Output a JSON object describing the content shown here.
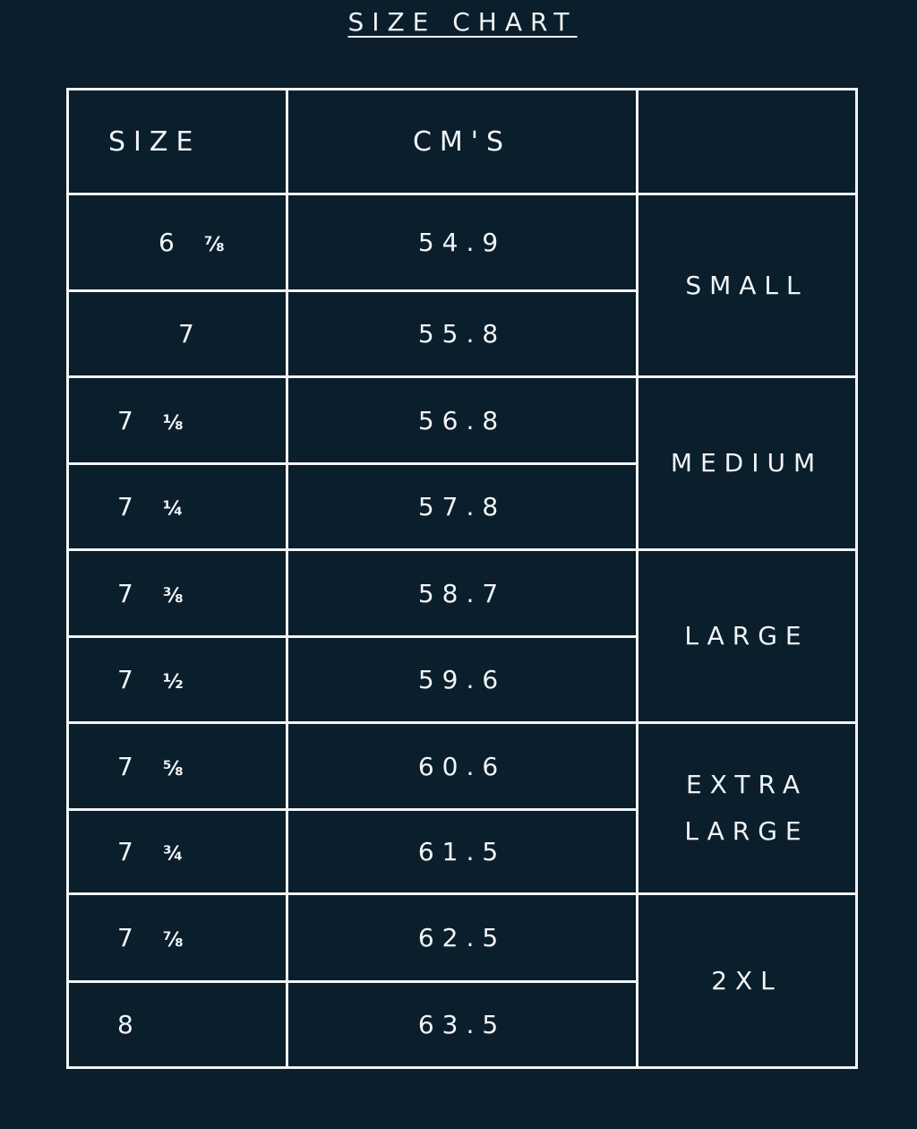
{
  "title": "SIZE CHART",
  "headers": {
    "size": "SIZE",
    "cms": "CM'S",
    "category": ""
  },
  "rows": [
    {
      "whole": "6",
      "fraction": "⅞",
      "cm": "54.9"
    },
    {
      "whole": "7",
      "fraction": "",
      "cm": "55.8"
    },
    {
      "whole": "7",
      "fraction": "⅛",
      "cm": "56.8"
    },
    {
      "whole": "7",
      "fraction": "¼",
      "cm": "57.8"
    },
    {
      "whole": "7",
      "fraction": "⅜",
      "cm": "58.7"
    },
    {
      "whole": "7",
      "fraction": "½",
      "cm": "59.6"
    },
    {
      "whole": "7",
      "fraction": "⅝",
      "cm": "60.6"
    },
    {
      "whole": "7",
      "fraction": "¾",
      "cm": "61.5"
    },
    {
      "whole": "7",
      "fraction": "⅞",
      "cm": "62.5"
    },
    {
      "whole": "8",
      "fraction": "",
      "cm": "63.5"
    }
  ],
  "categories": [
    {
      "line1": "SMALL",
      "line2": ""
    },
    {
      "line1": "MEDIUM",
      "line2": ""
    },
    {
      "line1": "LARGE",
      "line2": ""
    },
    {
      "line1": "EXTRA",
      "line2": "LARGE"
    },
    {
      "line1": "2XL",
      "line2": ""
    }
  ],
  "colors": {
    "background": "#0a1e2c",
    "foreground": "#f2f4f5"
  }
}
